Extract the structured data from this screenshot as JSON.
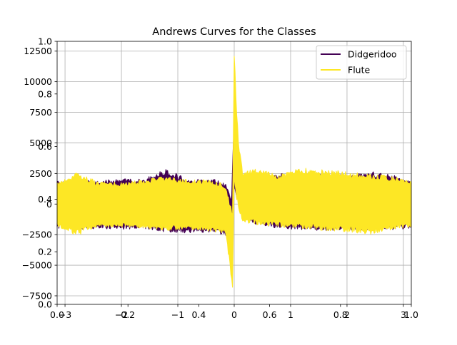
{
  "chart_data": {
    "type": "line",
    "title": "Andrews Curves for the Classes",
    "xlabel": "",
    "ylabel": "",
    "xlim": [
      -3.14,
      3.14
    ],
    "ylim": [
      -8200,
      13300
    ],
    "grid": true,
    "legend_position": "top-right",
    "x_ticks": [
      -3,
      -2,
      -1,
      0,
      1,
      2,
      3
    ],
    "x_tick_labels": [
      "−3",
      "−2",
      "−1",
      "0",
      "1",
      "2",
      "3"
    ],
    "y_ticks": [
      -7500,
      -5000,
      -2500,
      0,
      2500,
      5000,
      7500,
      10000,
      12500
    ],
    "y_tick_labels": [
      "−7500",
      "−5000",
      "−2500",
      "0",
      "2500",
      "5000",
      "7500",
      "10000",
      "12500"
    ],
    "overlay_x_ticks": [
      0.0,
      0.2,
      0.4,
      0.6,
      0.8,
      1.0
    ],
    "overlay_x_tick_labels": [
      "0.0",
      "0.2",
      "0.4",
      "0.6",
      "0.8",
      "1.0"
    ],
    "overlay_y_ticks": [
      0.0,
      0.2,
      0.4,
      0.6,
      0.8,
      1.0
    ],
    "overlay_y_tick_labels": [
      "0.0",
      "0.2",
      "0.4",
      "0.6",
      "0.8",
      "1.0"
    ],
    "series": [
      {
        "name": "Didgeridoo",
        "color": "#440154",
        "band": [
          [
            -3.14,
            -2000,
            1900
          ],
          [
            -2.8,
            -2100,
            2000
          ],
          [
            -2.4,
            -2000,
            1900
          ],
          [
            -2.0,
            -2100,
            2100
          ],
          [
            -1.6,
            -2000,
            2100
          ],
          [
            -1.2,
            -2300,
            2900
          ],
          [
            -0.8,
            -2400,
            2000
          ],
          [
            -0.4,
            -2300,
            2100
          ],
          [
            -0.15,
            -2600,
            1700
          ],
          [
            -0.05,
            -3300,
            500
          ],
          [
            0.0,
            1000,
            7000
          ],
          [
            0.05,
            400,
            3800
          ],
          [
            0.15,
            -1000,
            1400
          ],
          [
            0.4,
            -1800,
            2200
          ],
          [
            0.8,
            -2000,
            2500
          ],
          [
            1.2,
            -2100,
            2600
          ],
          [
            1.6,
            -2200,
            2500
          ],
          [
            2.0,
            -2100,
            2400
          ],
          [
            2.4,
            -2300,
            2700
          ],
          [
            2.8,
            -2100,
            2400
          ],
          [
            3.14,
            -2000,
            1900
          ]
        ]
      },
      {
        "name": "Flute",
        "color": "#fde725",
        "band": [
          [
            -3.14,
            -1800,
            1700
          ],
          [
            -2.8,
            -2600,
            2700
          ],
          [
            -2.4,
            -1900,
            1800
          ],
          [
            -2.0,
            -1900,
            1800
          ],
          [
            -1.6,
            -2000,
            2000
          ],
          [
            -1.2,
            -2200,
            2300
          ],
          [
            -0.8,
            -2100,
            2000
          ],
          [
            -0.4,
            -2300,
            2000
          ],
          [
            -0.15,
            -2400,
            1600
          ],
          [
            -0.08,
            -5000,
            200
          ],
          [
            -0.03,
            -7300,
            -600
          ],
          [
            0.0,
            2000,
            12900
          ],
          [
            0.03,
            600,
            9000
          ],
          [
            0.08,
            -500,
            5000
          ],
          [
            0.15,
            -1500,
            2700
          ],
          [
            0.4,
            -1700,
            2900
          ],
          [
            0.8,
            -1900,
            2400
          ],
          [
            1.2,
            -2000,
            3000
          ],
          [
            1.6,
            -2200,
            2800
          ],
          [
            2.0,
            -2300,
            2700
          ],
          [
            2.4,
            -2500,
            2500
          ],
          [
            2.8,
            -2100,
            2300
          ],
          [
            3.14,
            -1900,
            1900
          ]
        ]
      }
    ]
  }
}
